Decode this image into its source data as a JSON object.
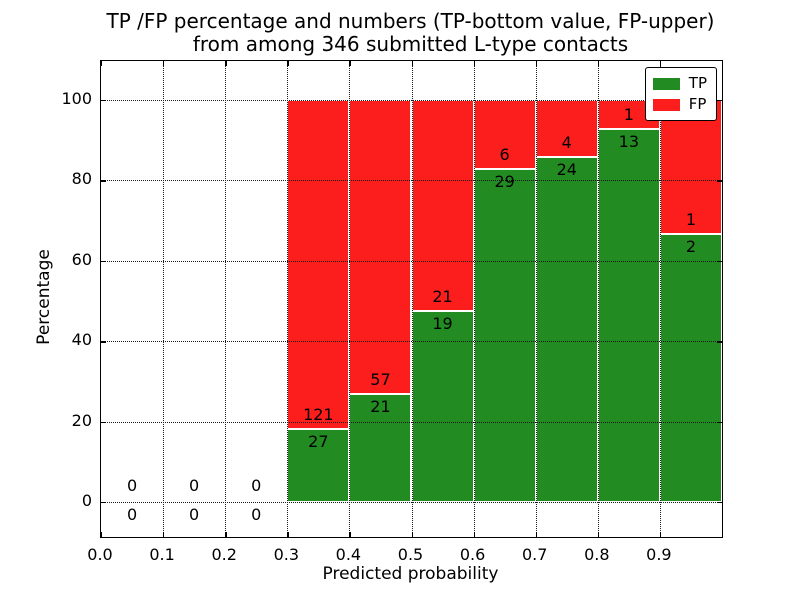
{
  "chart_data": {
    "type": "bar",
    "stacked": true,
    "units": "percent",
    "title_line1": "TP /FP percentage and numbers (TP-bottom value, FP-upper)",
    "title_line2": "from among 346 submitted L-type contacts",
    "xlabel": "Predicted probability",
    "ylabel": "Percentage",
    "total_contacts": 346,
    "xlim": [
      0.0,
      1.0
    ],
    "ylim": [
      -8.8,
      109.6
    ],
    "x_tick_labels": [
      "0.0",
      "0.1",
      "0.2",
      "0.3",
      "0.4",
      "0.5",
      "0.6",
      "0.7",
      "0.8",
      "0.9"
    ],
    "y_tick_labels": [
      "0",
      "20",
      "40",
      "60",
      "80",
      "100"
    ],
    "grid": "dotted, both axes, on top of bars",
    "legend": {
      "position": "upper right",
      "entries": [
        {
          "label": "TP",
          "color": "#228b22"
        },
        {
          "label": "FP",
          "color": "#fc1d1d"
        }
      ]
    },
    "bins": [
      {
        "x_start": 0.0,
        "x_end": 0.1,
        "tp_count": 0,
        "fp_count": 0,
        "tp_percent": 0,
        "total_percent": 0,
        "tp_label": "0",
        "fp_label": "0"
      },
      {
        "x_start": 0.1,
        "x_end": 0.2,
        "tp_count": 0,
        "fp_count": 0,
        "tp_percent": 0,
        "total_percent": 0,
        "tp_label": "0",
        "fp_label": "0"
      },
      {
        "x_start": 0.2,
        "x_end": 0.3,
        "tp_count": 0,
        "fp_count": 0,
        "tp_percent": 0,
        "total_percent": 0,
        "tp_label": "0",
        "fp_label": "0"
      },
      {
        "x_start": 0.3,
        "x_end": 0.4,
        "tp_count": 27,
        "fp_count": 121,
        "tp_percent": 18.24,
        "total_percent": 100,
        "tp_label": "27",
        "fp_label": "121"
      },
      {
        "x_start": 0.4,
        "x_end": 0.5,
        "tp_count": 21,
        "fp_count": 57,
        "tp_percent": 26.92,
        "total_percent": 100,
        "tp_label": "21",
        "fp_label": "57"
      },
      {
        "x_start": 0.5,
        "x_end": 0.6,
        "tp_count": 19,
        "fp_count": 21,
        "tp_percent": 47.5,
        "total_percent": 100,
        "tp_label": "19",
        "fp_label": "21"
      },
      {
        "x_start": 0.6,
        "x_end": 0.7,
        "tp_count": 29,
        "fp_count": 6,
        "tp_percent": 82.86,
        "total_percent": 100,
        "tp_label": "29",
        "fp_label": "6"
      },
      {
        "x_start": 0.7,
        "x_end": 0.8,
        "tp_count": 24,
        "fp_count": 4,
        "tp_percent": 85.71,
        "total_percent": 100,
        "tp_label": "24",
        "fp_label": "4"
      },
      {
        "x_start": 0.8,
        "x_end": 0.9,
        "tp_count": 13,
        "fp_count": 1,
        "tp_percent": 92.86,
        "total_percent": 100,
        "tp_label": "13",
        "fp_label": "1"
      },
      {
        "x_start": 0.9,
        "x_end": 1.0,
        "tp_count": 2,
        "fp_count": 1,
        "tp_percent": 66.67,
        "total_percent": 100,
        "tp_label": "2",
        "fp_label": "1"
      }
    ]
  }
}
